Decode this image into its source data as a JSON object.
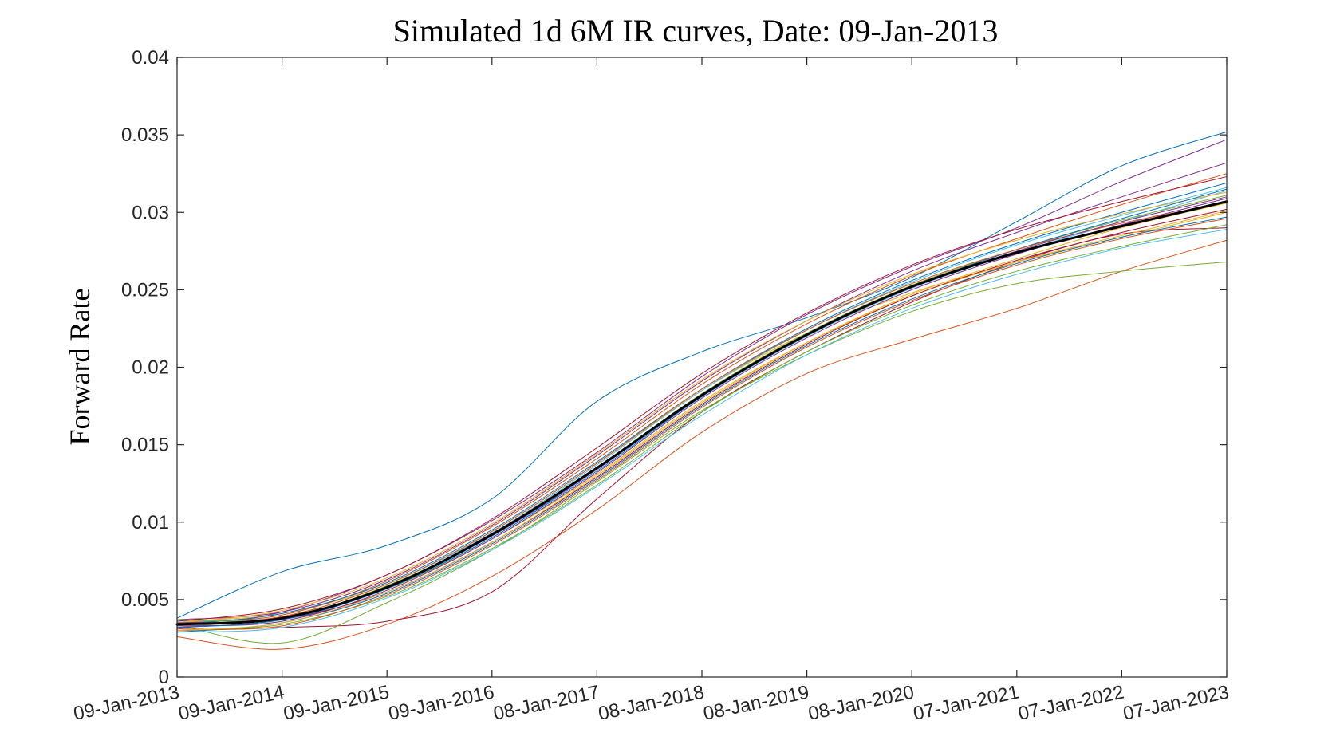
{
  "chart_data": {
    "type": "line",
    "title": "Simulated 1d 6M IR curves, Date: 09-Jan-2013",
    "ylabel": "Forward Rate",
    "xlabel": "",
    "x_ticks": [
      "09-Jan-2013",
      "09-Jan-2014",
      "09-Jan-2015",
      "09-Jan-2016",
      "08-Jan-2017",
      "08-Jan-2018",
      "08-Jan-2019",
      "08-Jan-2020",
      "07-Jan-2021",
      "07-Jan-2022",
      "07-Jan-2023"
    ],
    "y_ticks": [
      "0",
      "0.005",
      "0.01",
      "0.015",
      "0.02",
      "0.025",
      "0.03",
      "0.035",
      "0.04"
    ],
    "ylim": [
      0,
      0.04
    ],
    "xlim": [
      "09-Jan-2013",
      "07-Jan-2023"
    ],
    "grid": false,
    "legend": "none",
    "x": [
      "09-Jan-2013",
      "09-Jan-2014",
      "09-Jan-2015",
      "09-Jan-2016",
      "08-Jan-2017",
      "08-Jan-2018",
      "08-Jan-2019",
      "08-Jan-2020",
      "07-Jan-2021",
      "07-Jan-2022",
      "07-Jan-2023"
    ],
    "series": [
      {
        "color": "#000000",
        "emphasis": true,
        "values": [
          0.0034,
          0.0038,
          0.0058,
          0.0092,
          0.0135,
          0.0182,
          0.0221,
          0.0252,
          0.0274,
          0.0291,
          0.0307
        ]
      },
      {
        "color": "#0072BD",
        "values": [
          0.0038,
          0.0068,
          0.0085,
          0.0115,
          0.0178,
          0.021,
          0.0232,
          0.0258,
          0.0294,
          0.033,
          0.0352
        ]
      },
      {
        "color": "#D95319",
        "values": [
          0.0026,
          0.0018,
          0.0034,
          0.0065,
          0.0108,
          0.0158,
          0.0196,
          0.0218,
          0.0238,
          0.0262,
          0.0282
        ]
      },
      {
        "color": "#A2142F",
        "values": [
          0.003,
          0.0032,
          0.0036,
          0.0055,
          0.0115,
          0.0171,
          0.021,
          0.0242,
          0.0268,
          0.0286,
          0.029
        ]
      },
      {
        "color": "#77AC30",
        "values": [
          0.0034,
          0.0022,
          0.0048,
          0.0082,
          0.0126,
          0.0172,
          0.0208,
          0.0236,
          0.0254,
          0.0262,
          0.0268
        ]
      },
      {
        "color": "#7E2F8E",
        "values": [
          0.0031,
          0.0042,
          0.0066,
          0.0101,
          0.0145,
          0.0194,
          0.0234,
          0.0265,
          0.029,
          0.032,
          0.0347
        ]
      },
      {
        "color": "#EDB120",
        "values": [
          0.0036,
          0.0041,
          0.006,
          0.0094,
          0.0138,
          0.0185,
          0.0222,
          0.0248,
          0.0268,
          0.0284,
          0.03
        ]
      },
      {
        "color": "#4DBEEE",
        "values": [
          0.0033,
          0.0036,
          0.0058,
          0.009,
          0.0134,
          0.0181,
          0.022,
          0.0251,
          0.0274,
          0.0294,
          0.0314
        ]
      },
      {
        "color": "#0072BD",
        "values": [
          0.0029,
          0.0035,
          0.0054,
          0.0086,
          0.0128,
          0.0175,
          0.0214,
          0.0244,
          0.0267,
          0.0284,
          0.0297
        ]
      },
      {
        "color": "#D95319",
        "values": [
          0.0035,
          0.004,
          0.0062,
          0.0097,
          0.0141,
          0.0189,
          0.0228,
          0.0259,
          0.0283,
          0.0305,
          0.0325
        ]
      },
      {
        "color": "#EDB120",
        "values": [
          0.0032,
          0.0039,
          0.0057,
          0.0089,
          0.0131,
          0.0178,
          0.0216,
          0.0246,
          0.0268,
          0.0285,
          0.0301
        ]
      },
      {
        "color": "#7E2F8E",
        "values": [
          0.0037,
          0.0042,
          0.0063,
          0.0098,
          0.0143,
          0.0191,
          0.023,
          0.0262,
          0.0287,
          0.031,
          0.0332
        ]
      },
      {
        "color": "#77AC30",
        "values": [
          0.003,
          0.0034,
          0.0052,
          0.0083,
          0.0124,
          0.0171,
          0.021,
          0.024,
          0.0262,
          0.0278,
          0.0292
        ]
      },
      {
        "color": "#4DBEEE",
        "values": [
          0.0036,
          0.0039,
          0.006,
          0.0093,
          0.0137,
          0.0185,
          0.0224,
          0.0255,
          0.0279,
          0.0298,
          0.0316
        ]
      },
      {
        "color": "#A2142F",
        "values": [
          0.0032,
          0.0037,
          0.0055,
          0.0087,
          0.0129,
          0.0176,
          0.0215,
          0.0246,
          0.0269,
          0.0287,
          0.0302
        ]
      },
      {
        "color": "#0072BD",
        "values": [
          0.0034,
          0.0041,
          0.0061,
          0.0095,
          0.0139,
          0.0186,
          0.0225,
          0.0256,
          0.028,
          0.03,
          0.0319
        ]
      },
      {
        "color": "#D95319",
        "values": [
          0.0031,
          0.0033,
          0.0053,
          0.0085,
          0.0127,
          0.0174,
          0.0213,
          0.0243,
          0.0266,
          0.0283,
          0.0296
        ]
      },
      {
        "color": "#EDB120",
        "values": [
          0.0035,
          0.0043,
          0.0064,
          0.0099,
          0.0144,
          0.0192,
          0.023,
          0.026,
          0.0282,
          0.0299,
          0.0313
        ]
      },
      {
        "color": "#7E2F8E",
        "values": [
          0.0033,
          0.0036,
          0.0056,
          0.0089,
          0.0132,
          0.018,
          0.0219,
          0.025,
          0.0273,
          0.0292,
          0.0309
        ]
      },
      {
        "color": "#77AC30",
        "values": [
          0.0037,
          0.0038,
          0.0059,
          0.0092,
          0.0135,
          0.0183,
          0.0222,
          0.0253,
          0.0276,
          0.0295,
          0.0311
        ]
      },
      {
        "color": "#4DBEEE",
        "values": [
          0.0029,
          0.0032,
          0.0051,
          0.0082,
          0.0123,
          0.0169,
          0.0208,
          0.0238,
          0.026,
          0.0277,
          0.0289
        ]
      },
      {
        "color": "#A2142F",
        "values": [
          0.0036,
          0.0044,
          0.0066,
          0.0102,
          0.0148,
          0.0196,
          0.0235,
          0.0266,
          0.0289,
          0.0307,
          0.0323
        ]
      },
      {
        "color": "#0072BD",
        "values": [
          0.0032,
          0.0037,
          0.0057,
          0.009,
          0.0133,
          0.0181,
          0.0221,
          0.0252,
          0.0276,
          0.0296,
          0.0315
        ]
      },
      {
        "color": "#D95319",
        "values": [
          0.0034,
          0.0039,
          0.006,
          0.0094,
          0.0138,
          0.0186,
          0.0224,
          0.0254,
          0.0276,
          0.0293,
          0.0306
        ]
      },
      {
        "color": "#EDB120",
        "values": [
          0.003,
          0.0035,
          0.0055,
          0.0087,
          0.013,
          0.0177,
          0.0216,
          0.0247,
          0.027,
          0.029,
          0.0306
        ]
      },
      {
        "color": "#7E2F8E",
        "values": [
          0.0035,
          0.0038,
          0.0058,
          0.0091,
          0.0134,
          0.0182,
          0.0221,
          0.0252,
          0.0275,
          0.0294,
          0.031
        ]
      }
    ]
  }
}
